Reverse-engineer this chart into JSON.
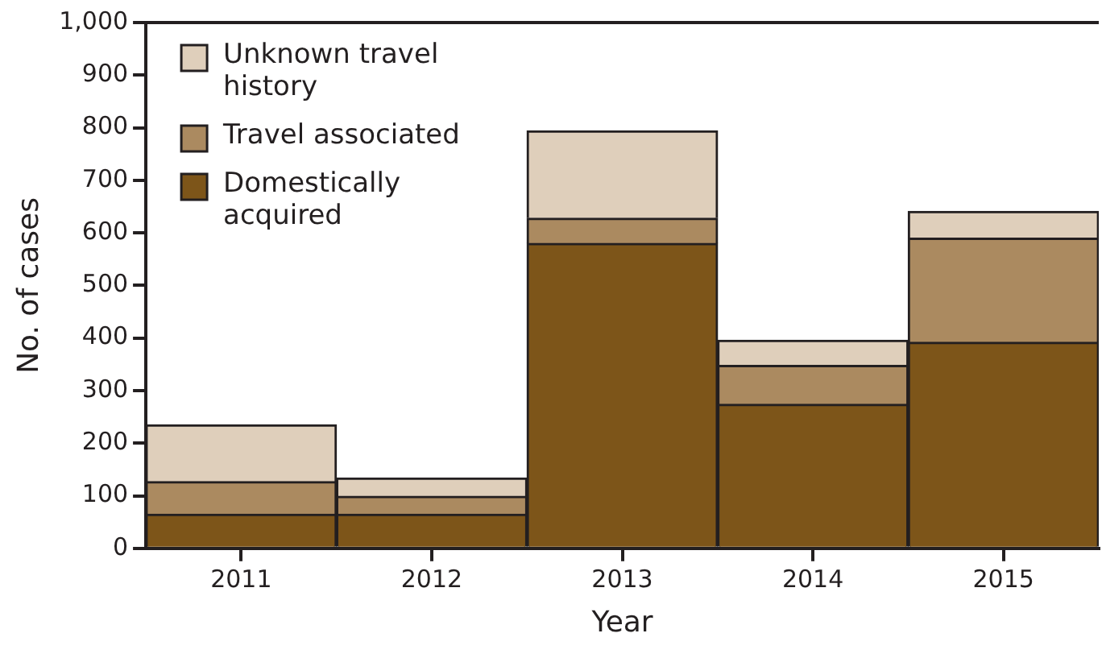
{
  "chart_data": {
    "type": "bar",
    "stacked": true,
    "xlabel": "Year",
    "ylabel": "No. of cases",
    "categories": [
      "2011",
      "2012",
      "2013",
      "2014",
      "2015"
    ],
    "series": [
      {
        "name": "Domestically acquired",
        "color": "#7d5519",
        "values": [
          65,
          65,
          580,
          274,
          392
        ]
      },
      {
        "name": "Travel associated",
        "color": "#ab8a60",
        "values": [
          62,
          34,
          48,
          74,
          198
        ]
      },
      {
        "name": "Unknown travel history",
        "color": "#dfcfbb",
        "values": [
          108,
          35,
          166,
          48,
          51
        ]
      }
    ],
    "ylim": [
      0,
      1000
    ],
    "yticks": [
      0,
      100,
      200,
      300,
      400,
      500,
      600,
      700,
      800,
      900,
      {
        "value": 1000,
        "label": "1,000"
      }
    ],
    "grid": false,
    "legend": "top left"
  }
}
